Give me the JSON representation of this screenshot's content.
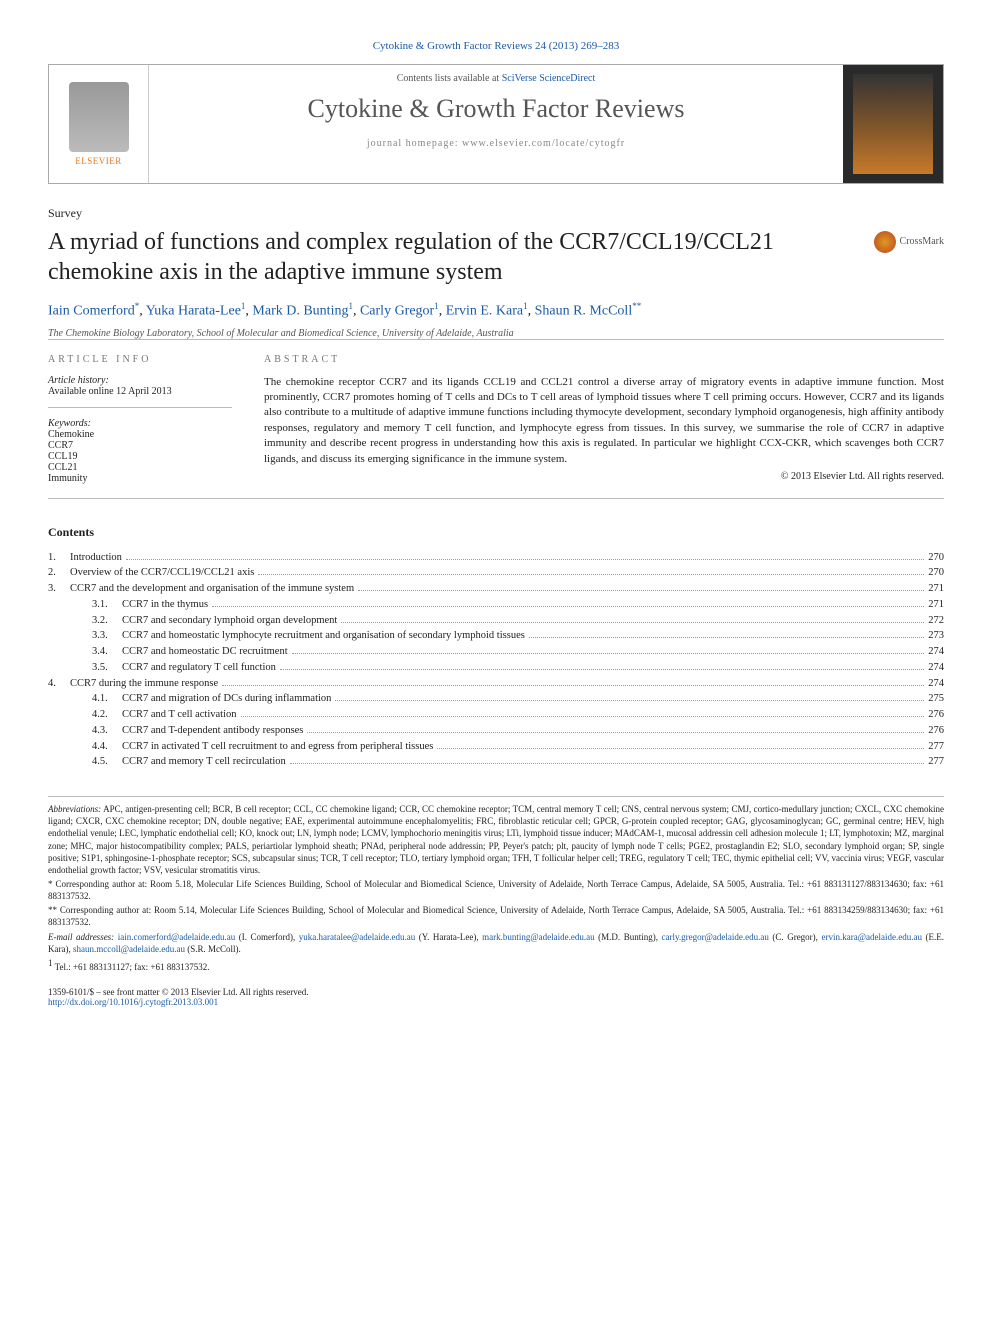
{
  "journal_link": "Cytokine & Growth Factor Reviews 24 (2013) 269–283",
  "header": {
    "contents_prefix": "Contents lists available at ",
    "contents_source": "SciVerse ScienceDirect",
    "journal_name": "Cytokine & Growth Factor Reviews",
    "homepage": "journal homepage: www.elsevier.com/locate/cytogfr",
    "publisher": "ELSEVIER"
  },
  "article": {
    "type": "Survey",
    "title": "A myriad of functions and complex regulation of the CCR7/CCL19/CCL21 chemokine axis in the adaptive immune system",
    "crossmark": "CrossMark"
  },
  "authors": [
    {
      "name": "Iain Comerford",
      "mark": "*"
    },
    {
      "name": "Yuka Harata-Lee",
      "mark": "1"
    },
    {
      "name": "Mark D. Bunting",
      "mark": "1"
    },
    {
      "name": "Carly Gregor",
      "mark": "1"
    },
    {
      "name": "Ervin E. Kara",
      "mark": "1"
    },
    {
      "name": "Shaun R. McColl",
      "mark": "**"
    }
  ],
  "affiliation": "The Chemokine Biology Laboratory, School of Molecular and Biomedical Science, University of Adelaide, Australia",
  "info": {
    "article_info_label": "ARTICLE INFO",
    "abstract_label": "ABSTRACT",
    "history_head": "Article history:",
    "history_value": "Available online 12 April 2013",
    "keywords_head": "Keywords:",
    "keywords": [
      "Chemokine",
      "CCR7",
      "CCL19",
      "CCL21",
      "Immunity"
    ]
  },
  "abstract": "The chemokine receptor CCR7 and its ligands CCL19 and CCL21 control a diverse array of migratory events in adaptive immune function. Most prominently, CCR7 promotes homing of T cells and DCs to T cell areas of lymphoid tissues where T cell priming occurs. However, CCR7 and its ligands also contribute to a multitude of adaptive immune functions including thymocyte development, secondary lymphoid organogenesis, high affinity antibody responses, regulatory and memory T cell function, and lymphocyte egress from tissues. In this survey, we summarise the role of CCR7 in adaptive immunity and describe recent progress in understanding how this axis is regulated. In particular we highlight CCX-CKR, which scavenges both CCR7 ligands, and discuss its emerging significance in the immune system.",
  "copyright": "© 2013 Elsevier Ltd. All rights reserved.",
  "contents_head": "Contents",
  "toc": [
    {
      "num": "1.",
      "title": "Introduction",
      "page": "270"
    },
    {
      "num": "2.",
      "title": "Overview of the CCR7/CCL19/CCL21 axis",
      "page": "270"
    },
    {
      "num": "3.",
      "title": "CCR7 and the development and organisation of the immune system",
      "page": "271"
    },
    {
      "num": "3.1.",
      "sub": true,
      "title": "CCR7 in the thymus",
      "page": "271"
    },
    {
      "num": "3.2.",
      "sub": true,
      "title": "CCR7 and secondary lymphoid organ development",
      "page": "272"
    },
    {
      "num": "3.3.",
      "sub": true,
      "title": "CCR7 and homeostatic lymphocyte recruitment and organisation of secondary lymphoid tissues",
      "page": "273"
    },
    {
      "num": "3.4.",
      "sub": true,
      "title": "CCR7 and homeostatic DC recruitment",
      "page": "274"
    },
    {
      "num": "3.5.",
      "sub": true,
      "title": "CCR7 and regulatory T cell function",
      "page": "274"
    },
    {
      "num": "4.",
      "title": "CCR7 during the immune response",
      "page": "274"
    },
    {
      "num": "4.1.",
      "sub": true,
      "title": "CCR7 and migration of DCs during inflammation",
      "page": "275"
    },
    {
      "num": "4.2.",
      "sub": true,
      "title": "CCR7 and T cell activation",
      "page": "276"
    },
    {
      "num": "4.3.",
      "sub": true,
      "title": "CCR7 and T-dependent antibody responses",
      "page": "276"
    },
    {
      "num": "4.4.",
      "sub": true,
      "title": "CCR7 in activated T cell recruitment to and egress from peripheral tissues",
      "page": "277"
    },
    {
      "num": "4.5.",
      "sub": true,
      "title": "CCR7 and memory T cell recirculation",
      "page": "277"
    }
  ],
  "footnotes": {
    "abbrev_head": "Abbreviations:",
    "abbrev_text": " APC, antigen-presenting cell; BCR, B cell receptor; CCL, CC chemokine ligand; CCR, CC chemokine receptor; TCM, central memory T cell; CNS, central nervous system; CMJ, cortico-medullary junction; CXCL, CXC chemokine ligand; CXCR, CXC chemokine receptor; DN, double negative; EAE, experimental autoimmune encephalomyelitis; FRC, fibroblastic reticular cell; GPCR, G-protein coupled receptor; GAG, glycosaminoglycan; GC, germinal centre; HEV, high endothelial venule; LEC, lymphatic endothelial cell; KO, knock out; LN, lymph node; LCMV, lymphochorio meningitis virus; LTi, lymphoid tissue inducer; MAdCAM-1, mucosal addressin cell adhesion molecule 1; LT, lymphotoxin; MZ, marginal zone; MHC, major histocompatibility complex; PALS, periartiolar lymphoid sheath; PNAd, peripheral node addressin; PP, Peyer's patch; plt, paucity of lymph node T cells; PGE2, prostaglandin E2; SLO, secondary lymphoid organ; SP, single positive; S1P1, sphingosine-1-phosphate receptor; SCS, subcapsular sinus; TCR, T cell receptor; TLO, tertiary lymphoid organ; TFH, T follicular helper cell; TREG, regulatory T cell; TEC, thymic epithelial cell; VV, vaccinia virus; VEGF, vascular endothelial growth factor; VSV, vesicular stromatitis virus.",
    "corr1_mark": "*",
    "corr1": " Corresponding author at: Room 5.18, Molecular Life Sciences Building, School of Molecular and Biomedical Science, University of Adelaide, North Terrace Campus, Adelaide, SA 5005, Australia. Tel.: +61 883131127/883134630; fax: +61 883137532.",
    "corr2_mark": "**",
    "corr2": " Corresponding author at: Room 5.14, Molecular Life Sciences Building, School of Molecular and Biomedical Science, University of Adelaide, North Terrace Campus, Adelaide, SA 5005, Australia. Tel.: +61 883134259/883134630; fax: +61 883137532.",
    "email_head": "E-mail addresses:",
    "emails": [
      {
        "addr": "iain.comerford@adelaide.edu.au",
        "who": " (I. Comerford), "
      },
      {
        "addr": "yuka.haratalee@adelaide.edu.au",
        "who": " (Y. Harata-Lee), "
      },
      {
        "addr": "mark.bunting@adelaide.edu.au",
        "who": " (M.D. Bunting), "
      },
      {
        "addr": "carly.gregor@adelaide.edu.au",
        "who": " (C. Gregor), "
      },
      {
        "addr": "ervin.kara@adelaide.edu.au",
        "who": " (E.E. Kara), "
      },
      {
        "addr": "shaun.mccoll@adelaide.edu.au",
        "who": " (S.R. McColl)."
      }
    ],
    "note1_mark": "1",
    "note1": " Tel.: +61 883131127; fax: +61 883137532."
  },
  "footer": {
    "line1": "1359-6101/$ – see front matter © 2013 Elsevier Ltd. All rights reserved.",
    "doi": "http://dx.doi.org/10.1016/j.cytogfr.2013.03.001"
  }
}
